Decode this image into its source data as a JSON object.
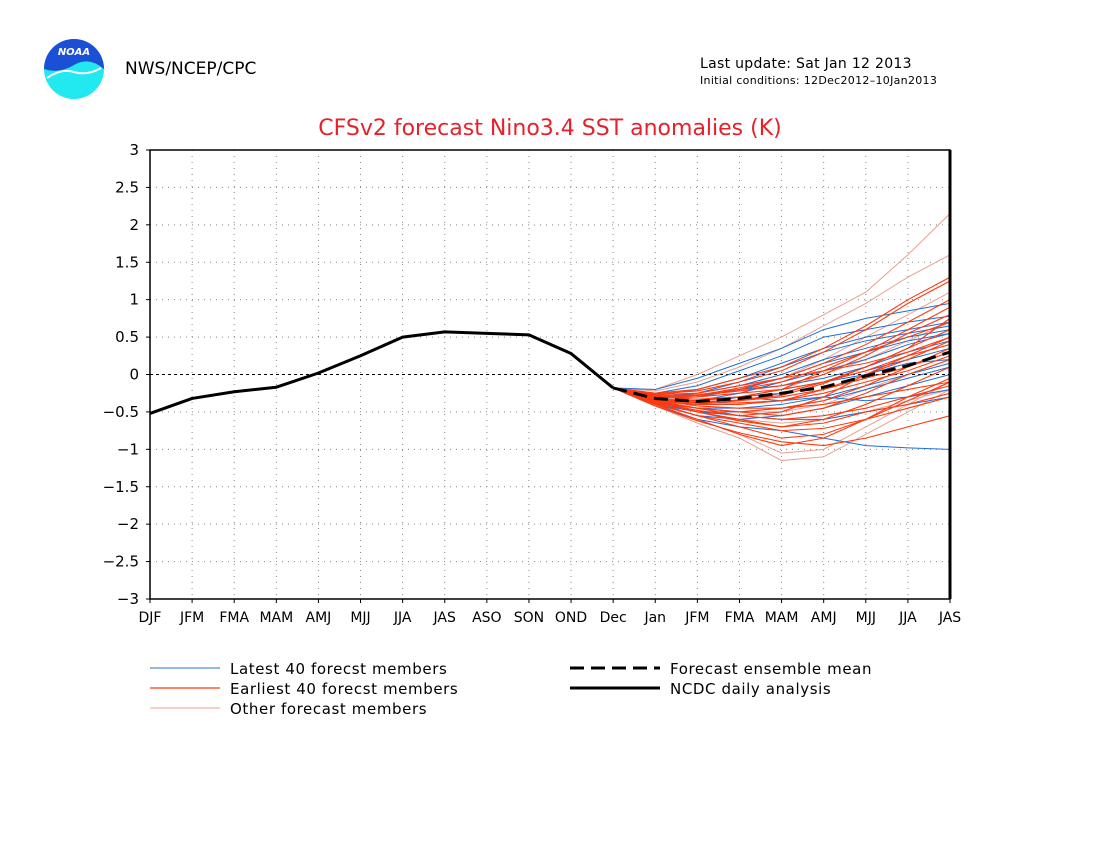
{
  "header": {
    "org": "NWS/NCEP/CPC",
    "last_update": "Last update: Sat Jan 12 2013",
    "initial_conditions": "Initial conditions: 12Dec2012–10Jan2013",
    "logo_text": "NOAA"
  },
  "colors": {
    "title": "#e8202a",
    "latest": "#1f6fd6",
    "earliest": "#ff3a10",
    "other": "#e8a090",
    "analysis": "#000000",
    "mean": "#000000",
    "logo_blue": "#1a4fd6",
    "logo_cyan": "#22e8f0"
  },
  "chart_data": {
    "type": "line",
    "title": "CFSv2 forecast Nino3.4 SST anomalies (K)",
    "xlabel": "",
    "ylabel": "",
    "categories": [
      "DJF",
      "JFM",
      "FMA",
      "MAM",
      "AMJ",
      "MJJ",
      "JJA",
      "JAS",
      "ASO",
      "SON",
      "OND",
      "Dec",
      "Jan",
      "JFM",
      "FMA",
      "MAM",
      "AMJ",
      "MJJ",
      "JJA",
      "JAS"
    ],
    "ylim": [
      -3,
      3
    ],
    "yticks": [
      "3",
      "2.5",
      "2",
      "1.5",
      "1",
      "0.5",
      "0",
      "−0.5",
      "−1",
      "−1.5",
      "−2",
      "−2.5",
      "−3"
    ],
    "ytick_values": [
      3,
      2.5,
      2,
      1.5,
      1,
      0.5,
      0,
      -0.5,
      -1,
      -1.5,
      -2,
      -2.5,
      -3
    ],
    "grid": true,
    "zero_line": true,
    "legend": {
      "position": "bottom",
      "items": [
        {
          "label": "Latest 40 forecst members",
          "style": "latest"
        },
        {
          "label": "Earliest 40 forecst members",
          "style": "earliest"
        },
        {
          "label": "Other forecast members",
          "style": "other"
        },
        {
          "label": "Forecast ensemble mean",
          "style": "mean"
        },
        {
          "label": "NCDC daily analysis",
          "style": "analysis"
        }
      ]
    },
    "series": [
      {
        "name": "NCDC daily analysis",
        "style": "analysis",
        "x": [
          0,
          1,
          2,
          3,
          4,
          5,
          6,
          7,
          8,
          9,
          10,
          11
        ],
        "values": [
          -0.52,
          -0.32,
          -0.23,
          -0.17,
          0.02,
          0.25,
          0.5,
          0.57,
          0.55,
          0.53,
          0.28,
          -0.18
        ]
      },
      {
        "name": "Forecast ensemble mean",
        "style": "mean",
        "x": [
          11,
          12,
          13,
          14,
          15,
          16,
          17,
          18,
          19
        ],
        "values": [
          -0.18,
          -0.32,
          -0.36,
          -0.32,
          -0.25,
          -0.17,
          -0.02,
          0.12,
          0.3
        ]
      }
    ],
    "ensemble": {
      "start_index": 11,
      "start_value": -0.18,
      "members": {
        "latest": [
          [
            -0.2,
            -0.05,
            0.15,
            0.35,
            0.6,
            0.75,
            0.85,
            0.95
          ],
          [
            -0.25,
            -0.15,
            0.05,
            0.25,
            0.5,
            0.6,
            0.7,
            0.78
          ],
          [
            -0.3,
            -0.25,
            -0.1,
            0.1,
            0.3,
            0.45,
            0.55,
            0.65
          ],
          [
            -0.28,
            -0.2,
            -0.05,
            0.15,
            0.35,
            0.5,
            0.6,
            0.7
          ],
          [
            -0.32,
            -0.3,
            -0.2,
            -0.05,
            0.15,
            0.3,
            0.45,
            0.55
          ],
          [
            -0.35,
            -0.4,
            -0.35,
            -0.25,
            -0.1,
            0.05,
            0.2,
            0.35
          ],
          [
            -0.36,
            -0.45,
            -0.45,
            -0.4,
            -0.3,
            -0.15,
            0.0,
            0.15
          ],
          [
            -0.4,
            -0.55,
            -0.6,
            -0.55,
            -0.45,
            -0.3,
            -0.15,
            0.0
          ],
          [
            -0.42,
            -0.6,
            -0.7,
            -0.75,
            -0.85,
            -0.95,
            -0.98,
            -1.0
          ],
          [
            -0.38,
            -0.5,
            -0.5,
            -0.45,
            -0.35,
            -0.2,
            -0.05,
            0.1
          ],
          [
            -0.33,
            -0.35,
            -0.25,
            -0.1,
            0.05,
            0.2,
            0.4,
            0.55
          ],
          [
            -0.3,
            -0.3,
            -0.2,
            -0.15,
            -0.05,
            0.1,
            0.3,
            0.45
          ],
          [
            -0.4,
            -0.5,
            -0.55,
            -0.6,
            -0.6,
            -0.5,
            -0.4,
            -0.3
          ],
          [
            -0.36,
            -0.4,
            -0.3,
            -0.2,
            -0.1,
            0.0,
            0.15,
            0.2
          ],
          [
            -0.34,
            -0.35,
            -0.3,
            -0.35,
            -0.3,
            -0.35,
            -0.3,
            -0.2
          ],
          [
            -0.3,
            -0.25,
            -0.15,
            0.0,
            0.2,
            0.35,
            0.5,
            0.6
          ]
        ],
        "earliest": [
          [
            -0.4,
            -0.6,
            -0.8,
            -0.95,
            -0.85,
            -0.6,
            -0.3,
            -0.05
          ],
          [
            -0.38,
            -0.55,
            -0.7,
            -0.85,
            -0.8,
            -0.6,
            -0.35,
            -0.1
          ],
          [
            -0.36,
            -0.5,
            -0.6,
            -0.7,
            -0.6,
            -0.4,
            -0.15,
            0.1
          ],
          [
            -0.35,
            -0.45,
            -0.5,
            -0.55,
            -0.45,
            -0.25,
            0.0,
            0.2
          ],
          [
            -0.34,
            -0.42,
            -0.45,
            -0.45,
            -0.35,
            -0.15,
            0.1,
            0.35
          ],
          [
            -0.32,
            -0.38,
            -0.38,
            -0.35,
            -0.2,
            0.0,
            0.25,
            0.5
          ],
          [
            -0.3,
            -0.33,
            -0.3,
            -0.25,
            -0.1,
            0.1,
            0.35,
            0.6
          ],
          [
            -0.28,
            -0.28,
            -0.22,
            -0.15,
            0.0,
            0.25,
            0.55,
            0.8
          ],
          [
            -0.27,
            -0.25,
            -0.15,
            -0.05,
            0.15,
            0.4,
            0.7,
            1.0
          ],
          [
            -0.26,
            -0.22,
            -0.1,
            0.05,
            0.3,
            0.6,
            0.95,
            1.25
          ],
          [
            -0.25,
            -0.2,
            -0.05,
            0.1,
            0.35,
            0.65,
            1.0,
            1.3
          ],
          [
            -0.3,
            -0.3,
            -0.25,
            -0.2,
            -0.1,
            0.05,
            0.25,
            0.4
          ],
          [
            -0.33,
            -0.36,
            -0.35,
            -0.3,
            -0.2,
            -0.05,
            0.1,
            0.3
          ],
          [
            -0.37,
            -0.48,
            -0.55,
            -0.6,
            -0.55,
            -0.45,
            -0.3,
            -0.15
          ],
          [
            -0.39,
            -0.55,
            -0.65,
            -0.75,
            -0.72,
            -0.6,
            -0.45,
            -0.3
          ],
          [
            -0.42,
            -0.62,
            -0.78,
            -0.9,
            -0.95,
            -0.85,
            -0.7,
            -0.55
          ],
          [
            -0.38,
            -0.45,
            -0.5,
            -0.45,
            -0.4,
            -0.3,
            -0.2,
            -0.1
          ],
          [
            -0.31,
            -0.28,
            -0.18,
            -0.05,
            0.05,
            0.15,
            0.3,
            0.5
          ],
          [
            -0.29,
            -0.27,
            -0.2,
            -0.1,
            0.1,
            0.3,
            0.5,
            0.7
          ],
          [
            -0.35,
            -0.4,
            -0.4,
            -0.35,
            -0.25,
            -0.1,
            0.05,
            0.25
          ],
          [
            -0.36,
            -0.45,
            -0.55,
            -0.5,
            -0.3,
            0.0,
            0.2,
            0.45
          ],
          [
            -0.33,
            -0.35,
            -0.3,
            -0.2,
            0.05,
            0.3,
            0.6,
            0.9
          ],
          [
            -0.37,
            -0.5,
            -0.62,
            -0.7,
            -0.65,
            -0.5,
            -0.4,
            -0.25
          ],
          [
            -0.34,
            -0.38,
            -0.34,
            -0.28,
            -0.12,
            0.1,
            0.35,
            0.75
          ]
        ],
        "other": [
          [
            -0.2,
            0.0,
            0.25,
            0.5,
            0.8,
            1.1,
            1.6,
            2.15
          ],
          [
            -0.22,
            -0.1,
            0.1,
            0.35,
            0.65,
            0.95,
            1.3,
            1.6
          ],
          [
            -0.3,
            -0.3,
            -0.2,
            -0.05,
            0.2,
            0.5,
            0.8,
            1.1
          ],
          [
            -0.42,
            -0.65,
            -0.85,
            -1.15,
            -1.1,
            -0.8,
            -0.5,
            -0.2
          ],
          [
            -0.4,
            -0.6,
            -0.8,
            -1.05,
            -1.0,
            -0.7,
            -0.4,
            -0.1
          ],
          [
            -0.35,
            -0.45,
            -0.5,
            -0.5,
            -0.4,
            -0.2,
            0.0,
            0.2
          ],
          [
            -0.32,
            -0.35,
            -0.3,
            -0.2,
            0.0,
            0.2,
            0.45,
            0.7
          ],
          [
            -0.38,
            -0.5,
            -0.6,
            -0.65,
            -0.6,
            -0.5,
            -0.35,
            -0.2
          ]
        ]
      }
    }
  }
}
